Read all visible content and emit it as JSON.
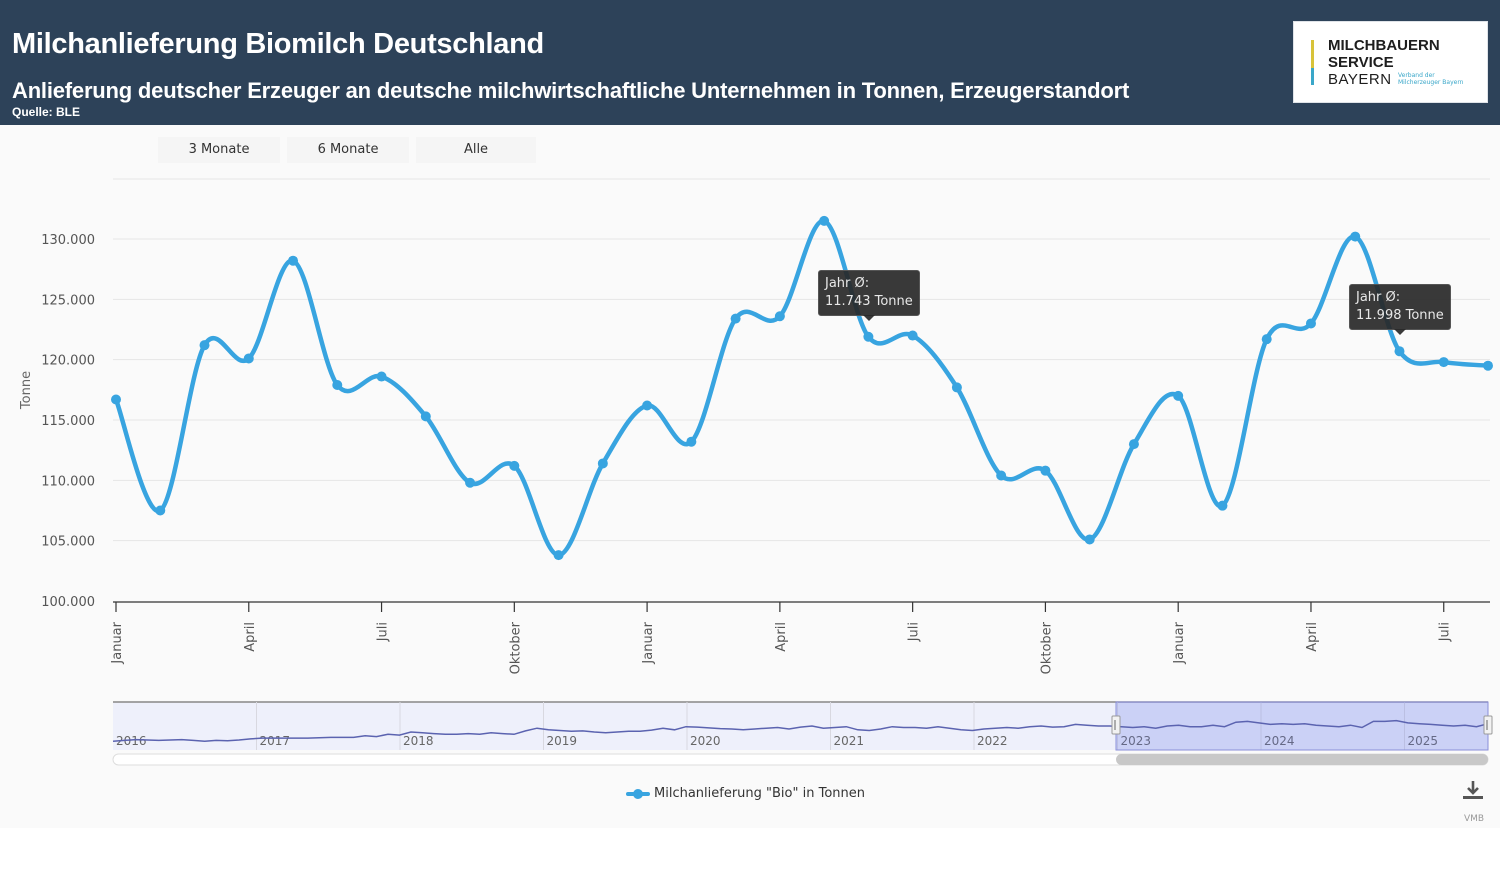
{
  "header": {
    "title": "Milchanlieferung Biomilch Deutschland",
    "subtitle": "Anlieferung deutscher Erzeuger an deutsche milchwirtschaftliche Unternehmen in Tonnen, Erzeugerstandort",
    "source": "Quelle: BLE"
  },
  "logo": {
    "line1": "MILCHBAUERN",
    "line2": "SERVICE",
    "line3": "BAYERN",
    "tagline": "Verband der Milcherzeuger Bayern"
  },
  "range_selector": {
    "buttons": [
      "3 Monate",
      "6 Monate",
      "Alle"
    ]
  },
  "tooltips": [
    {
      "label": "Jahr Ø:",
      "value": "11.743 Tonne"
    },
    {
      "label": "Jahr Ø:",
      "value": "11.998 Tonne"
    }
  ],
  "legend": {
    "label": "Milchanlieferung \"Bio\" in Tonnen"
  },
  "credit": "VMB",
  "colors": {
    "header_bg": "#2d4259",
    "series": "#38a4e0",
    "navigator_selection": "#c8cdf5",
    "navigator_line": "#5b63b0"
  },
  "chart_data": {
    "type": "line",
    "title": "Milchanlieferung Biomilch Deutschland",
    "xlabel": "",
    "ylabel": "Tonne",
    "ylim": [
      100000,
      130000
    ],
    "yticks": [
      100000,
      105000,
      110000,
      115000,
      120000,
      125000,
      130000
    ],
    "ytick_labels": [
      "100.000",
      "105.000",
      "110.000",
      "115.000",
      "120.000",
      "125.000",
      "130.000"
    ],
    "xtick_labels": [
      {
        "label": "Januar",
        "index": 0
      },
      {
        "label": "April",
        "index": 3
      },
      {
        "label": "Juli",
        "index": 6
      },
      {
        "label": "Oktober",
        "index": 9
      },
      {
        "label": "Januar",
        "index": 12
      },
      {
        "label": "April",
        "index": 15
      },
      {
        "label": "Juli",
        "index": 18
      },
      {
        "label": "Oktober",
        "index": 21
      },
      {
        "label": "Januar",
        "index": 24
      },
      {
        "label": "April",
        "index": 27
      },
      {
        "label": "Juli",
        "index": 30
      }
    ],
    "grid": true,
    "legend_position": "bottom-center",
    "series": [
      {
        "name": "Milchanlieferung \"Bio\" in Tonnen",
        "x": [
          "2023-01",
          "2023-02",
          "2023-03",
          "2023-04",
          "2023-05",
          "2023-06",
          "2023-07",
          "2023-08",
          "2023-09",
          "2023-10",
          "2023-11",
          "2023-12",
          "2024-01",
          "2024-02",
          "2024-03",
          "2024-04",
          "2024-05",
          "2024-06",
          "2024-07",
          "2024-08",
          "2024-09",
          "2024-10",
          "2024-11",
          "2024-12",
          "2025-01",
          "2025-02",
          "2025-03",
          "2025-04",
          "2025-05",
          "2025-06",
          "2025-07",
          "2025-08"
        ],
        "values": [
          116700,
          107500,
          121200,
          120100,
          128200,
          117900,
          118600,
          115300,
          109800,
          111200,
          103800,
          111400,
          116200,
          113200,
          123400,
          123600,
          131500,
          121900,
          122000,
          117700,
          110400,
          110800,
          105100,
          113000,
          117000,
          107900,
          121700,
          123000,
          130200,
          120700,
          119800,
          119500
        ]
      }
    ],
    "annotations": [
      {
        "type": "tooltip",
        "at": "2024-06",
        "text": "Jahr Ø: 11.743 Tonne"
      },
      {
        "type": "tooltip",
        "at": "2025-06",
        "text": "Jahr Ø: 11.998 Tonne"
      }
    ],
    "navigator": {
      "years": [
        "2016",
        "2017",
        "2018",
        "2019",
        "2020",
        "2021",
        "2022",
        "2023",
        "2024",
        "2025"
      ],
      "selected_range": [
        "2023-01",
        "2025-08"
      ]
    }
  }
}
